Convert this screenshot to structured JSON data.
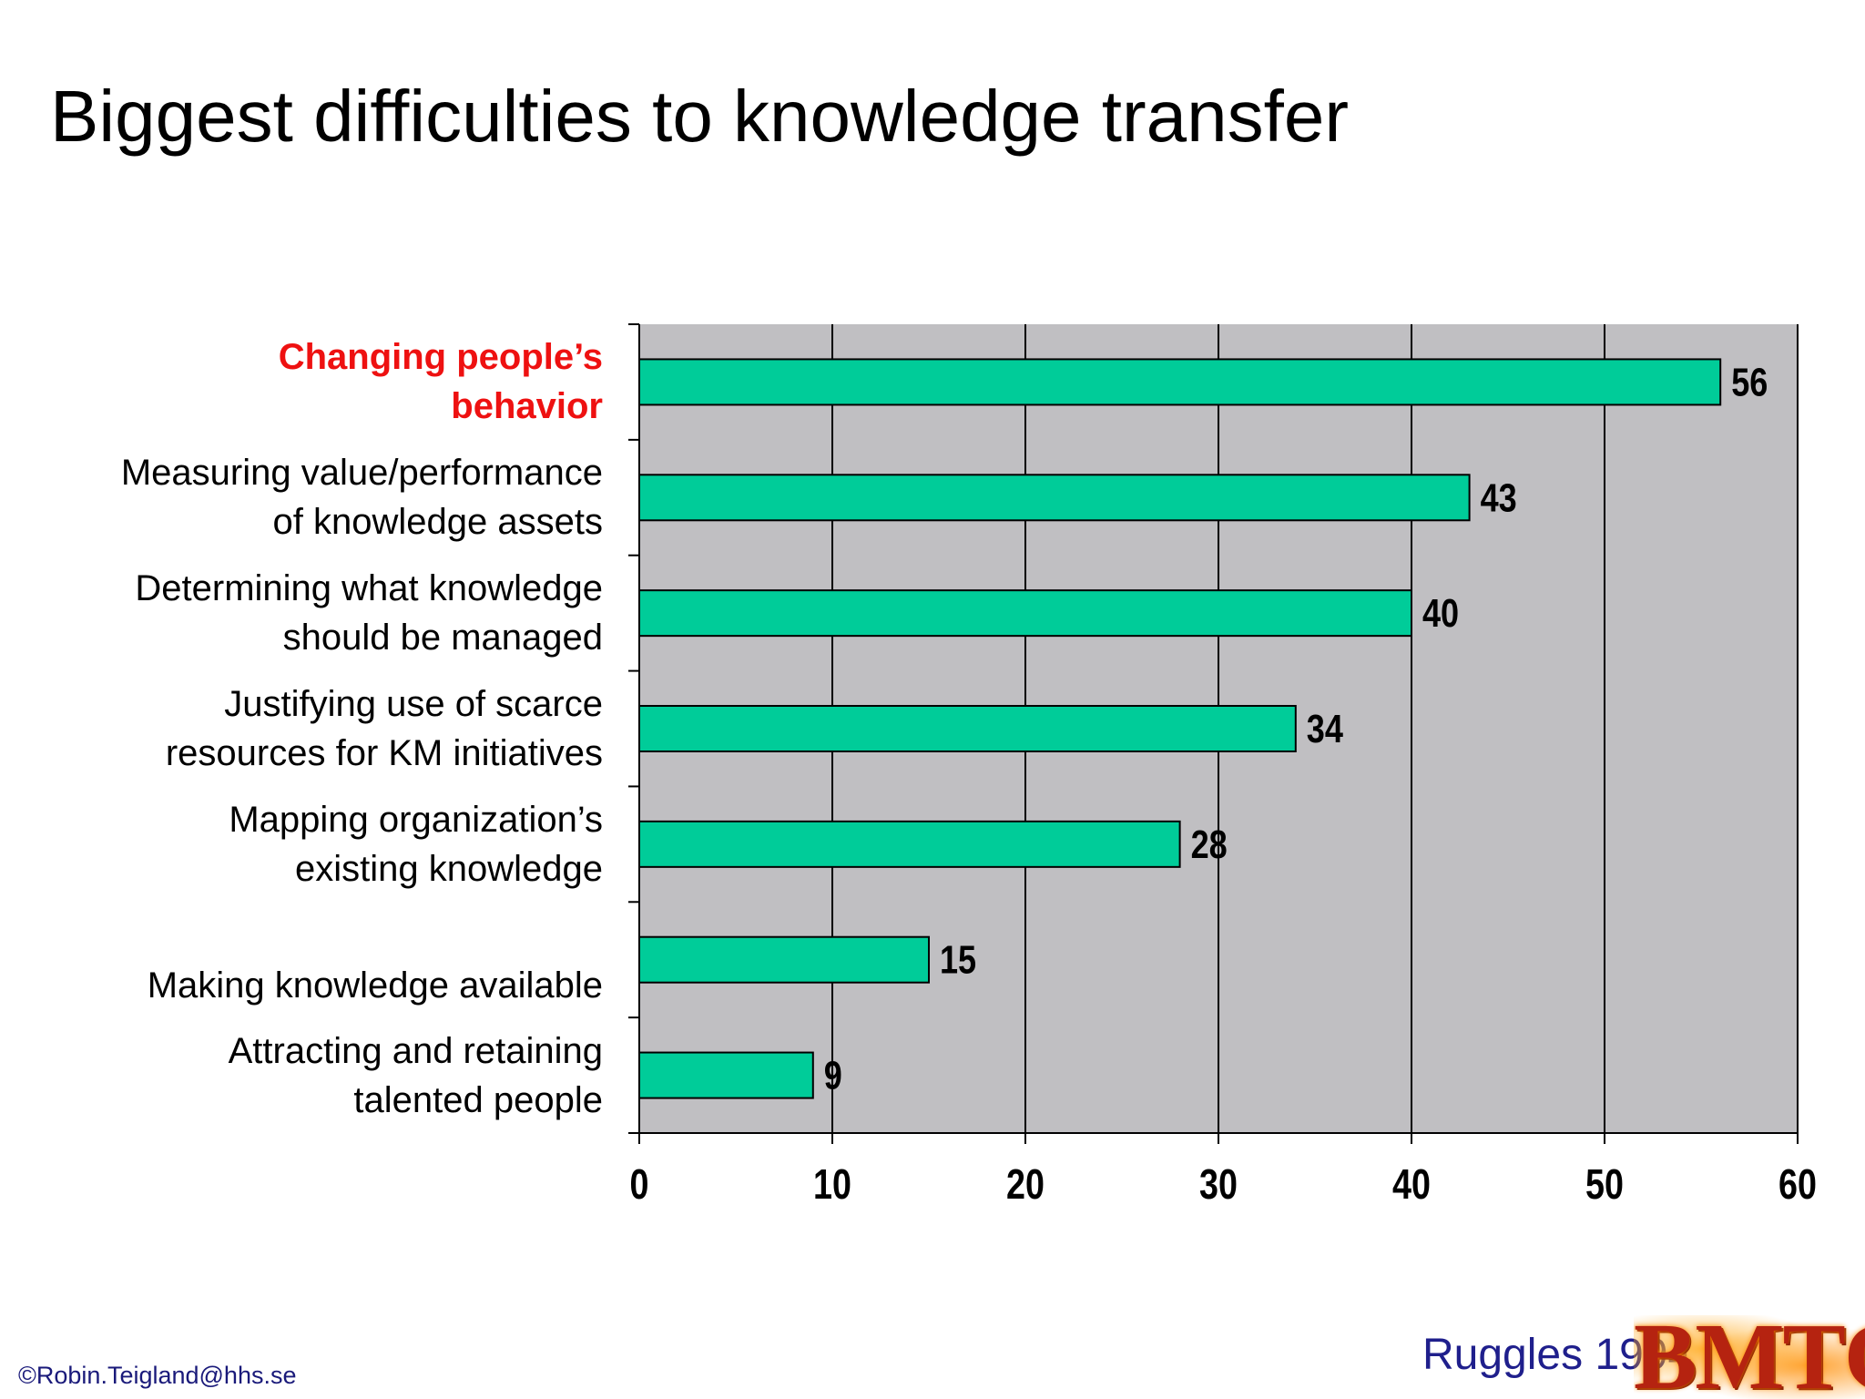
{
  "slide": {
    "title": "Biggest difficulties to knowledge transfer",
    "copyright": "©Robin.Teigland@hhs.se",
    "citation": "Ruggles 1994",
    "logo_text": "BMTC"
  },
  "colors": {
    "bar_fill": "#00cc99",
    "plot_background": "#c0bfc2",
    "highlight_label": "#ee1111"
  },
  "chart_data": {
    "type": "bar",
    "orientation": "horizontal",
    "categories": [
      {
        "lines": [
          "Changing people’s",
          "behavior"
        ],
        "highlight": true
      },
      {
        "lines": [
          "Measuring value/performance",
          "of knowledge assets"
        ],
        "highlight": false
      },
      {
        "lines": [
          "Determining what knowledge",
          "should be managed"
        ],
        "highlight": false
      },
      {
        "lines": [
          "Justifying use of scarce",
          "resources for KM initiatives"
        ],
        "highlight": false
      },
      {
        "lines": [
          "Mapping organization’s",
          "existing knowledge"
        ],
        "highlight": false
      },
      {
        "lines": [
          "Making knowledge available"
        ],
        "highlight": false
      },
      {
        "lines": [
          "Attracting and retaining",
          "talented people"
        ],
        "highlight": false
      }
    ],
    "values": [
      56,
      43,
      40,
      34,
      28,
      15,
      9
    ],
    "data_labels": [
      "56",
      "43",
      "40",
      "34",
      "28",
      "15",
      "9"
    ],
    "xlim": [
      0,
      60
    ],
    "xticks": [
      0,
      10,
      20,
      30,
      40,
      50,
      60
    ],
    "xtick_labels": [
      "0",
      "10",
      "20",
      "30",
      "40",
      "50",
      "60"
    ],
    "grid": true,
    "legend": "none",
    "title": "",
    "xlabel": "",
    "ylabel": ""
  }
}
